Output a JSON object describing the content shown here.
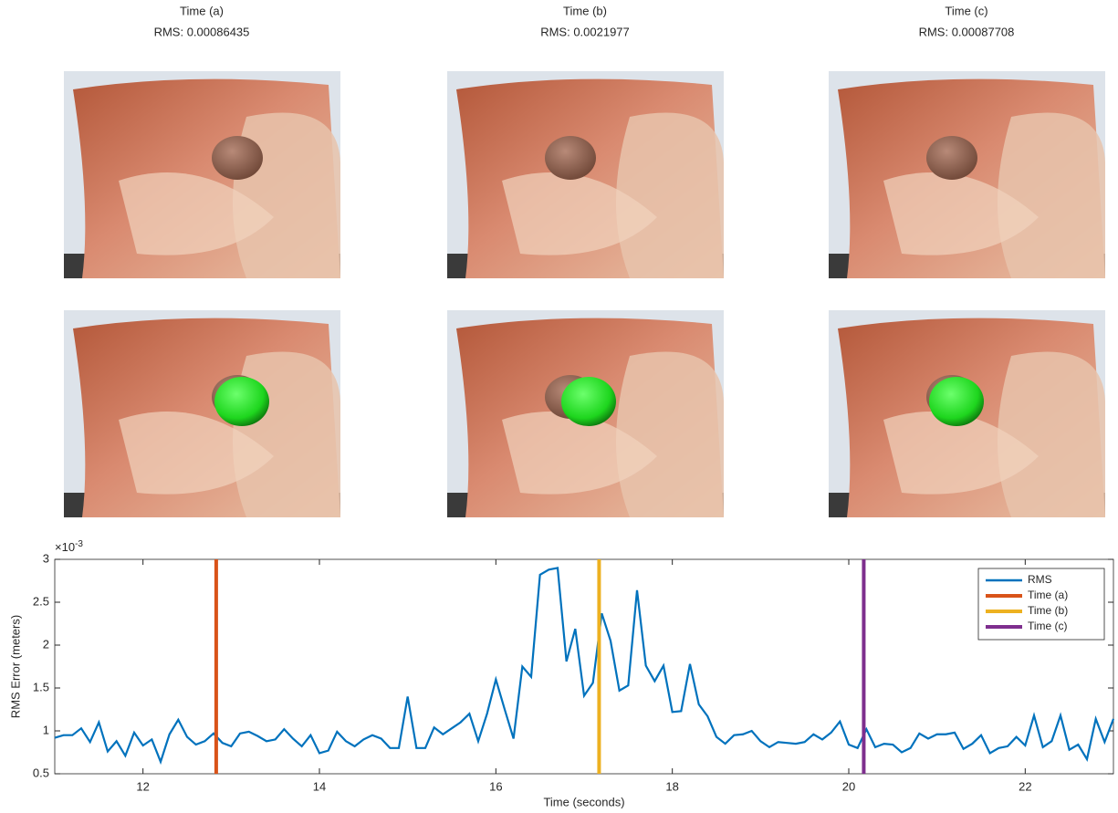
{
  "panels": [
    {
      "title": "Time (a)",
      "rms": "RMS: 0.00086435"
    },
    {
      "title": "Time (b)",
      "rms": "RMS: 0.0021977"
    },
    {
      "title": "Time (c)",
      "rms": "RMS: 0.00087708"
    }
  ],
  "chart_data": {
    "type": "line",
    "xlabel": "Time (seconds)",
    "ylabel": "RMS Error (meters)",
    "y_multiplier": {
      "base": "×10",
      "exponent": "-3"
    },
    "xlim": [
      11,
      23
    ],
    "xticks": [
      12,
      14,
      16,
      18,
      20,
      22
    ],
    "ylim": [
      0.5,
      3
    ],
    "yticks": [
      0.5,
      1,
      1.5,
      2,
      2.5,
      3
    ],
    "legend": "upper right",
    "series": [
      {
        "name": "RMS",
        "color": "#0072bd",
        "x": [
          11.0,
          11.1,
          11.2,
          11.3,
          11.4,
          11.5,
          11.6,
          11.7,
          11.8,
          11.9,
          12.0,
          12.1,
          12.2,
          12.3,
          12.4,
          12.5,
          12.6,
          12.7,
          12.8,
          12.9,
          13.0,
          13.1,
          13.2,
          13.3,
          13.4,
          13.5,
          13.6,
          13.7,
          13.8,
          13.9,
          14.0,
          14.1,
          14.2,
          14.3,
          14.4,
          14.5,
          14.6,
          14.7,
          14.8,
          14.9,
          15.0,
          15.1,
          15.2,
          15.3,
          15.4,
          15.5,
          15.6,
          15.7,
          15.8,
          15.9,
          16.0,
          16.1,
          16.2,
          16.3,
          16.4,
          16.5,
          16.6,
          16.7,
          16.8,
          16.9,
          17.0,
          17.1,
          17.2,
          17.3,
          17.4,
          17.5,
          17.6,
          17.7,
          17.8,
          17.9,
          18.0,
          18.1,
          18.2,
          18.3,
          18.4,
          18.5,
          18.6,
          18.7,
          18.8,
          18.9,
          19.0,
          19.1,
          19.2,
          19.3,
          19.4,
          19.5,
          19.6,
          19.7,
          19.8,
          19.9,
          20.0,
          20.1,
          20.2,
          20.3,
          20.4,
          20.5,
          20.6,
          20.7,
          20.8,
          20.9,
          21.0,
          21.1,
          21.2,
          21.3,
          21.4,
          21.5,
          21.6,
          21.7,
          21.8,
          21.9,
          22.0,
          22.1,
          22.2,
          22.3,
          22.4,
          22.5,
          22.6,
          22.7,
          22.8,
          22.9,
          23.0
        ],
        "values": [
          0.92,
          0.95,
          0.95,
          1.03,
          0.87,
          1.1,
          0.76,
          0.88,
          0.71,
          0.98,
          0.83,
          0.9,
          0.64,
          0.96,
          1.13,
          0.93,
          0.84,
          0.88,
          0.97,
          0.86,
          0.82,
          0.97,
          0.99,
          0.94,
          0.88,
          0.9,
          1.02,
          0.91,
          0.82,
          0.95,
          0.74,
          0.77,
          0.99,
          0.88,
          0.82,
          0.9,
          0.95,
          0.91,
          0.8,
          0.8,
          1.4,
          0.8,
          0.8,
          1.04,
          0.96,
          1.03,
          1.1,
          1.2,
          0.88,
          1.2,
          1.6,
          1.25,
          0.91,
          1.75,
          1.63,
          2.82,
          2.88,
          2.9,
          1.81,
          2.19,
          1.41,
          1.56,
          2.37,
          2.05,
          1.47,
          1.53,
          2.64,
          1.76,
          1.58,
          1.76,
          1.22,
          1.23,
          1.78,
          1.31,
          1.17,
          0.93,
          0.85,
          0.95,
          0.96,
          1.0,
          0.88,
          0.81,
          0.87,
          0.86,
          0.85,
          0.87,
          0.96,
          0.9,
          0.98,
          1.11,
          0.84,
          0.8,
          1.02,
          0.81,
          0.85,
          0.84,
          0.75,
          0.8,
          0.97,
          0.91,
          0.96,
          0.96,
          0.98,
          0.79,
          0.85,
          0.95,
          0.74,
          0.8,
          0.82,
          0.93,
          0.83,
          1.18,
          0.81,
          0.88,
          1.18,
          0.78,
          0.84,
          0.67,
          1.14,
          0.87,
          1.14
        ]
      }
    ],
    "markers": [
      {
        "name": "Time (a)",
        "color": "#d95319",
        "x": 12.83
      },
      {
        "name": "Time (b)",
        "color": "#edb120",
        "x": 17.17
      },
      {
        "name": "Time (c)",
        "color": "#7e2f8e",
        "x": 20.17
      }
    ]
  }
}
